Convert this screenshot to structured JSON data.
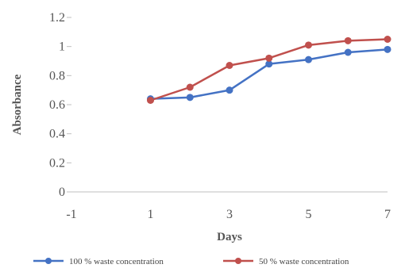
{
  "chart_data": {
    "type": "line",
    "title": "",
    "xlabel": "Days",
    "ylabel": "Absorbance",
    "xlim": [
      -1,
      7
    ],
    "ylim": [
      0,
      1.2
    ],
    "x_ticks": [
      "-1",
      "1",
      "3",
      "5",
      "7"
    ],
    "y_ticks": [
      "0",
      "0.2",
      "0.4",
      "0.6",
      "0.8",
      "1",
      "1.2"
    ],
    "grid": false,
    "legend_position": "bottom",
    "series": [
      {
        "name": "100 % waste concentration",
        "color": "#4472C4",
        "x": [
          1,
          2,
          3,
          4,
          5,
          6,
          7
        ],
        "y": [
          0.64,
          0.65,
          0.7,
          0.88,
          0.91,
          0.96,
          0.98
        ]
      },
      {
        "name": "50 % waste concentration",
        "color": "#C0504D",
        "x": [
          1,
          2,
          3,
          4,
          5,
          6,
          7
        ],
        "y": [
          0.63,
          0.72,
          0.87,
          0.92,
          1.01,
          1.04,
          1.05
        ]
      }
    ]
  }
}
